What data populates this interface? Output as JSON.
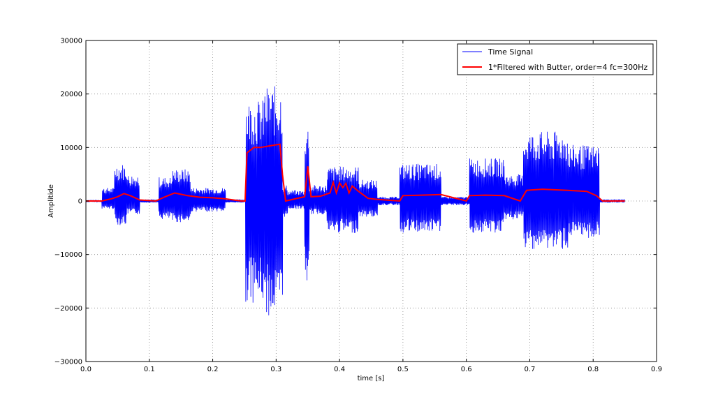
{
  "chart_data": {
    "type": "line",
    "title": "",
    "xlabel": "time [s]",
    "ylabel": "Amplitide",
    "xlim": [
      0.0,
      0.9
    ],
    "ylim": [
      -30000,
      30000
    ],
    "xticks": [
      "0.0",
      "0.1",
      "0.2",
      "0.3",
      "0.4",
      "0.5",
      "0.6",
      "0.7",
      "0.8",
      "0.9"
    ],
    "yticks": [
      "−30000",
      "−20000",
      "−10000",
      "0",
      "10000",
      "20000",
      "30000"
    ],
    "grid": true,
    "legend_position": "upper right",
    "series": [
      {
        "name": "Time Signal",
        "color": "#0000ff",
        "style": "dense oscillating waveform",
        "envelope_segments": [
          {
            "t_start": 0.0,
            "t_end": 0.025,
            "max": 200,
            "min": -200
          },
          {
            "t_start": 0.025,
            "t_end": 0.045,
            "max": 2500,
            "min": -1500
          },
          {
            "t_start": 0.045,
            "t_end": 0.065,
            "max": 7000,
            "min": -4500
          },
          {
            "t_start": 0.065,
            "t_end": 0.085,
            "max": 5000,
            "min": -2500
          },
          {
            "t_start": 0.085,
            "t_end": 0.115,
            "max": 300,
            "min": -300
          },
          {
            "t_start": 0.115,
            "t_end": 0.135,
            "max": 4500,
            "min": -3500
          },
          {
            "t_start": 0.135,
            "t_end": 0.165,
            "max": 6000,
            "min": -4000
          },
          {
            "t_start": 0.165,
            "t_end": 0.22,
            "max": 2500,
            "min": -2000
          },
          {
            "t_start": 0.22,
            "t_end": 0.252,
            "max": 300,
            "min": -300
          },
          {
            "t_start": 0.252,
            "t_end": 0.28,
            "max": 19000,
            "min": -19000
          },
          {
            "t_start": 0.28,
            "t_end": 0.31,
            "max": 21500,
            "min": -21500
          },
          {
            "t_start": 0.31,
            "t_end": 0.318,
            "max": 3000,
            "min": -3000
          },
          {
            "t_start": 0.318,
            "t_end": 0.345,
            "max": 2000,
            "min": -1500
          },
          {
            "t_start": 0.345,
            "t_end": 0.352,
            "max": 14500,
            "min": -15500
          },
          {
            "t_start": 0.352,
            "t_end": 0.38,
            "max": 3000,
            "min": -2500
          },
          {
            "t_start": 0.38,
            "t_end": 0.43,
            "max": 6500,
            "min": -6000
          },
          {
            "t_start": 0.43,
            "t_end": 0.46,
            "max": 4000,
            "min": -3000
          },
          {
            "t_start": 0.46,
            "t_end": 0.495,
            "max": 800,
            "min": -800
          },
          {
            "t_start": 0.495,
            "t_end": 0.56,
            "max": 7000,
            "min": -6000
          },
          {
            "t_start": 0.56,
            "t_end": 0.605,
            "max": 800,
            "min": -800
          },
          {
            "t_start": 0.605,
            "t_end": 0.66,
            "max": 8000,
            "min": -6000
          },
          {
            "t_start": 0.66,
            "t_end": 0.69,
            "max": 5000,
            "min": -3500
          },
          {
            "t_start": 0.69,
            "t_end": 0.76,
            "max": 13000,
            "min": -9000
          },
          {
            "t_start": 0.76,
            "t_end": 0.81,
            "max": 10500,
            "min": -7000
          },
          {
            "t_start": 0.81,
            "t_end": 0.85,
            "max": 300,
            "min": -300
          }
        ]
      },
      {
        "name": "1*Filtered with Butter, order=4 fc=300Hz",
        "color": "#ff0000",
        "style": "smoothed line",
        "x": [
          0.0,
          0.025,
          0.04,
          0.05,
          0.06,
          0.07,
          0.085,
          0.11,
          0.125,
          0.14,
          0.16,
          0.18,
          0.2,
          0.22,
          0.245,
          0.251,
          0.254,
          0.265,
          0.275,
          0.29,
          0.3,
          0.306,
          0.31,
          0.315,
          0.33,
          0.345,
          0.35,
          0.355,
          0.37,
          0.385,
          0.39,
          0.395,
          0.4,
          0.405,
          0.41,
          0.415,
          0.42,
          0.43,
          0.445,
          0.46,
          0.495,
          0.5,
          0.53,
          0.56,
          0.6,
          0.605,
          0.63,
          0.66,
          0.685,
          0.695,
          0.72,
          0.76,
          0.79,
          0.805,
          0.815,
          0.85
        ],
        "y": [
          0,
          0,
          400,
          800,
          1400,
          1000,
          200,
          0,
          800,
          1500,
          1000,
          700,
          600,
          400,
          0,
          0,
          9000,
          10000,
          10000,
          10300,
          10500,
          10600,
          5000,
          0,
          400,
          800,
          6500,
          800,
          900,
          1500,
          3500,
          1500,
          3400,
          2500,
          3300,
          1500,
          2800,
          1800,
          500,
          300,
          0,
          1000,
          1100,
          1200,
          0,
          1000,
          1100,
          1000,
          0,
          2000,
          2200,
          2000,
          1800,
          1000,
          0,
          0
        ]
      }
    ]
  }
}
